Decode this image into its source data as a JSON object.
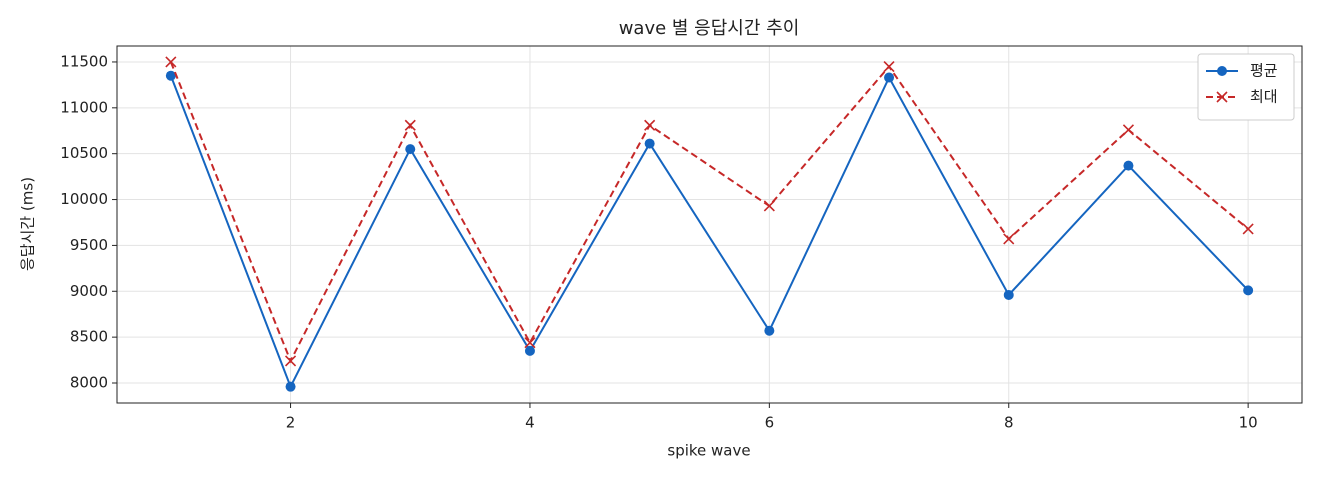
{
  "chart_data": {
    "type": "line",
    "title": "wave 별 응답시간 추이",
    "x_label": "spike wave",
    "y_label": "응답시간 (ms)",
    "x": [
      1,
      2,
      3,
      4,
      5,
      6,
      7,
      8,
      9,
      10
    ],
    "series": [
      {
        "name": "평균",
        "color": "#1565c0",
        "linestyle": "solid",
        "marker": "o",
        "values": [
          11350,
          7960,
          10550,
          8350,
          10610,
          8570,
          11330,
          8960,
          10370,
          9010
        ]
      },
      {
        "name": "최대",
        "color": "#c62828",
        "linestyle": "dashed",
        "marker": "x",
        "values": [
          11500,
          8240,
          10810,
          8440,
          10810,
          9930,
          11450,
          9570,
          10760,
          9680
        ]
      }
    ],
    "xlim": [
      0.55,
      10.45
    ],
    "xticks": [
      2,
      4,
      6,
      8,
      10
    ],
    "ylim": [
      7782,
      11674
    ],
    "yticks": [
      8000,
      8500,
      9000,
      9500,
      10000,
      10500,
      11000,
      11500
    ],
    "grid": true,
    "legend": "upper right"
  }
}
